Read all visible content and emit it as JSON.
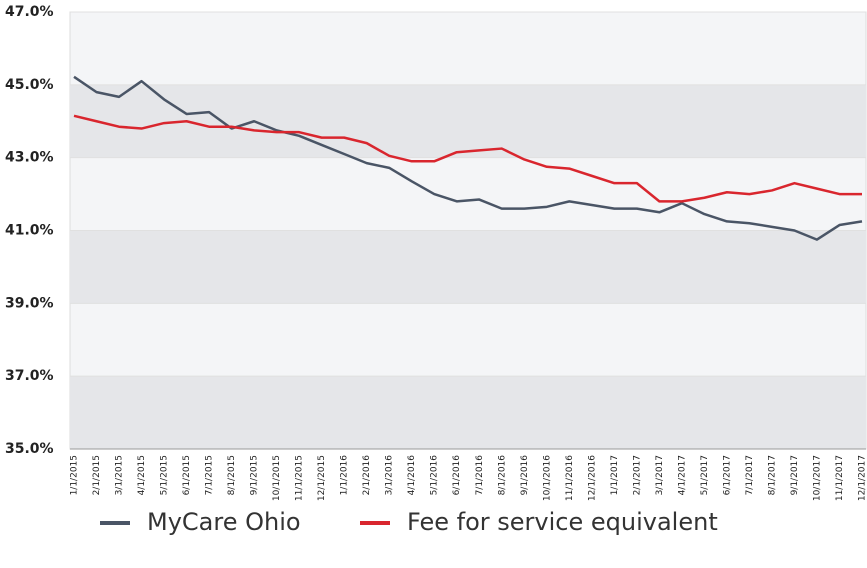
{
  "chart_data": {
    "type": "line",
    "categories": [
      "1/1/2015",
      "2/1/2015",
      "3/1/2015",
      "4/1/2015",
      "5/1/2015",
      "6/1/2015",
      "7/1/2015",
      "8/1/2015",
      "9/1/2015",
      "10/1/2015",
      "11/1/2015",
      "12/1/2015",
      "1/1/2016",
      "2/1/2016",
      "3/1/2016",
      "4/1/2016",
      "5/1/2016",
      "6/1/2016",
      "7/1/2016",
      "8/1/2016",
      "9/1/2016",
      "10/1/2016",
      "11/1/2016",
      "12/1/2016",
      "1/1/2017",
      "2/1/2017",
      "3/1/2017",
      "4/1/2017",
      "5/1/2017",
      "6/1/2017",
      "7/1/2017",
      "8/1/2017",
      "9/1/2017",
      "10/1/2017",
      "11/1/2017",
      "12/1/2017"
    ],
    "series": [
      {
        "name": "MyCare Ohio",
        "color": "#4a5566",
        "values": [
          45.22,
          44.8,
          44.67,
          45.1,
          44.6,
          44.2,
          44.25,
          43.8,
          44.0,
          43.75,
          43.6,
          43.35,
          43.1,
          42.85,
          42.72,
          42.35,
          42.0,
          41.8,
          41.85,
          41.6,
          41.6,
          41.65,
          41.8,
          41.7,
          41.6,
          41.6,
          41.5,
          41.75,
          41.45,
          41.25,
          41.2,
          41.1,
          41.0,
          40.75,
          41.15,
          41.25
        ]
      },
      {
        "name": "Fee for service equivalent",
        "color": "#d9262e",
        "values": [
          44.15,
          44.0,
          43.85,
          43.8,
          43.95,
          44.0,
          43.85,
          43.85,
          43.75,
          43.7,
          43.7,
          43.55,
          43.55,
          43.4,
          43.05,
          42.9,
          42.9,
          43.15,
          43.2,
          43.25,
          42.95,
          42.75,
          42.7,
          42.5,
          42.3,
          42.3,
          41.8,
          41.8,
          41.9,
          42.05,
          42.0,
          42.1,
          42.3,
          42.15,
          42.0,
          42.0
        ]
      }
    ],
    "ylim": [
      35,
      47
    ],
    "yticks": [
      {
        "value": 35,
        "label": "35.0%"
      },
      {
        "value": 37,
        "label": "37.0%"
      },
      {
        "value": 39,
        "label": "39.0%"
      },
      {
        "value": 41,
        "label": "41.0%"
      },
      {
        "value": 43,
        "label": "43.0%"
      },
      {
        "value": 45,
        "label": "45.0%"
      },
      {
        "value": 47,
        "label": "47.0%"
      }
    ],
    "grid": true,
    "legend": "bottom"
  }
}
